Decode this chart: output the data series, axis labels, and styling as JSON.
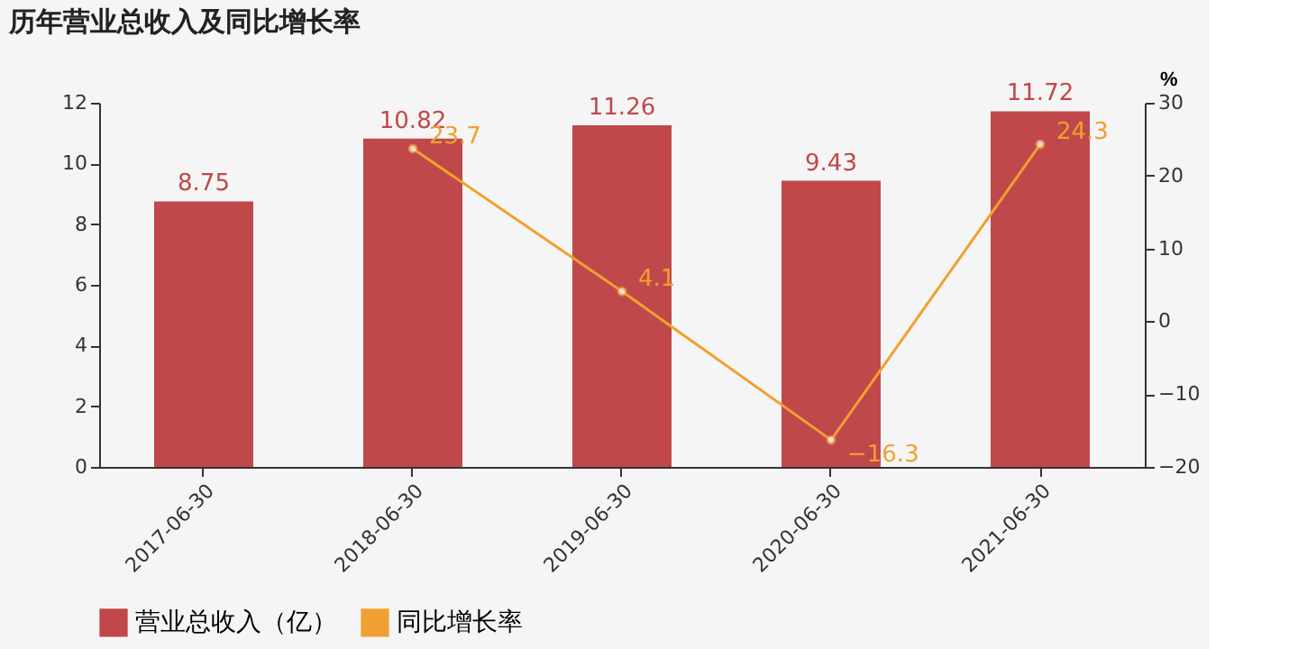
{
  "chart_data": {
    "type": "bar",
    "title": "历年营业总收入及同比增长率",
    "categories": [
      "2017-06-30",
      "2018-06-30",
      "2019-06-30",
      "2020-06-30",
      "2021-06-30"
    ],
    "series": [
      {
        "name": "营业总收入（亿）",
        "color": "#c0484a",
        "values": [
          8.75,
          10.82,
          11.26,
          9.43,
          11.72
        ]
      },
      {
        "name": "同比增长率",
        "type": "line",
        "axis": "y2",
        "color": "#f0a030",
        "marker": "circle",
        "values": [
          null,
          23.7,
          4.1,
          -16.3,
          24.3
        ]
      }
    ],
    "ylim": [
      0,
      12
    ],
    "yticks": [
      0,
      2,
      4,
      6,
      8,
      10,
      12
    ],
    "y2lim": [
      -20,
      30
    ],
    "y2ticks": [
      -20,
      -10,
      0,
      10,
      20,
      30
    ],
    "y2label": "%",
    "data_labels": true,
    "legend": "bottom",
    "grid": false
  }
}
